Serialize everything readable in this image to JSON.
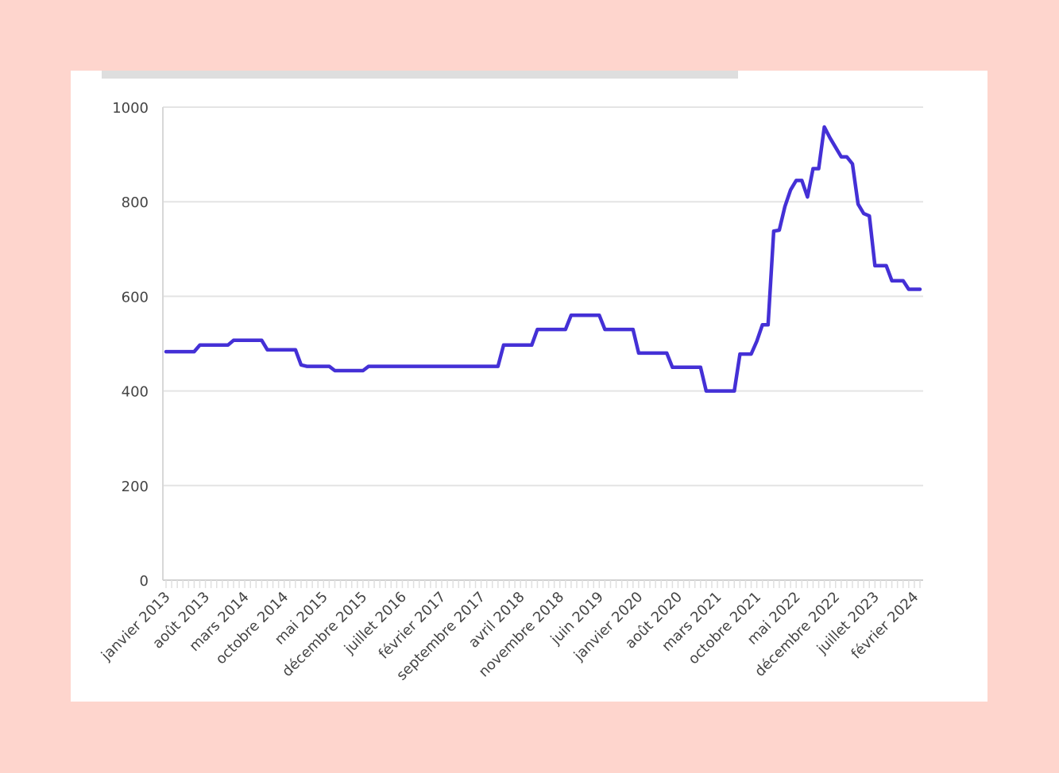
{
  "chart_data": {
    "type": "line",
    "title": "",
    "xlabel": "",
    "ylabel": "",
    "ylim": [
      0,
      1000
    ],
    "yticks": [
      "0",
      "200",
      "400",
      "600",
      "800",
      "1000"
    ],
    "grid": true,
    "xtick_labels": [
      "janvier 2013",
      "août 2013",
      "mars 2014",
      "octobre 2014",
      "mai 2015",
      "décembre 2015",
      "juillet 2016",
      "février 2017",
      "septembre 2017",
      "avril 2018",
      "novembre 2018",
      "juin 2019",
      "janvier 2020",
      "août 2020",
      "mars 2021",
      "octobre 2021",
      "mai 2022",
      "décembre 2022",
      "juillet 2023",
      "février 2024"
    ],
    "x_start": "2013-01",
    "x_end": "2024-03",
    "series": [
      {
        "color": "#4430d6",
        "points": [
          [
            "2013-01",
            483
          ],
          [
            "2013-06",
            483
          ],
          [
            "2013-07",
            497
          ],
          [
            "2013-12",
            497
          ],
          [
            "2014-01",
            507
          ],
          [
            "2014-06",
            507
          ],
          [
            "2014-07",
            487
          ],
          [
            "2014-12",
            487
          ],
          [
            "2015-01",
            455
          ],
          [
            "2015-02",
            452
          ],
          [
            "2015-06",
            452
          ],
          [
            "2015-07",
            443
          ],
          [
            "2015-12",
            443
          ],
          [
            "2016-01",
            452
          ],
          [
            "2017-12",
            452
          ],
          [
            "2018-01",
            497
          ],
          [
            "2018-06",
            497
          ],
          [
            "2018-07",
            530
          ],
          [
            "2018-12",
            530
          ],
          [
            "2019-01",
            560
          ],
          [
            "2019-06",
            560
          ],
          [
            "2019-07",
            530
          ],
          [
            "2019-12",
            530
          ],
          [
            "2020-01",
            480
          ],
          [
            "2020-06",
            480
          ],
          [
            "2020-07",
            450
          ],
          [
            "2020-12",
            450
          ],
          [
            "2021-01",
            400
          ],
          [
            "2021-06",
            400
          ],
          [
            "2021-07",
            478
          ],
          [
            "2021-09",
            478
          ],
          [
            "2021-10",
            505
          ],
          [
            "2021-11",
            540
          ],
          [
            "2021-12",
            540
          ],
          [
            "2022-01",
            738
          ],
          [
            "2022-02",
            740
          ],
          [
            "2022-03",
            790
          ],
          [
            "2022-04",
            825
          ],
          [
            "2022-05",
            845
          ],
          [
            "2022-06",
            845
          ],
          [
            "2022-07",
            810
          ],
          [
            "2022-08",
            870
          ],
          [
            "2022-09",
            870
          ],
          [
            "2022-10",
            958
          ],
          [
            "2022-11",
            935
          ],
          [
            "2022-12",
            915
          ],
          [
            "2023-01",
            895
          ],
          [
            "2023-02",
            895
          ],
          [
            "2023-03",
            880
          ],
          [
            "2023-04",
            795
          ],
          [
            "2023-05",
            775
          ],
          [
            "2023-06",
            770
          ],
          [
            "2023-07",
            665
          ],
          [
            "2023-08",
            665
          ],
          [
            "2023-09",
            665
          ],
          [
            "2023-10",
            633
          ],
          [
            "2023-11",
            633
          ],
          [
            "2023-12",
            633
          ],
          [
            "2024-01",
            615
          ],
          [
            "2024-03",
            615
          ]
        ]
      }
    ]
  }
}
